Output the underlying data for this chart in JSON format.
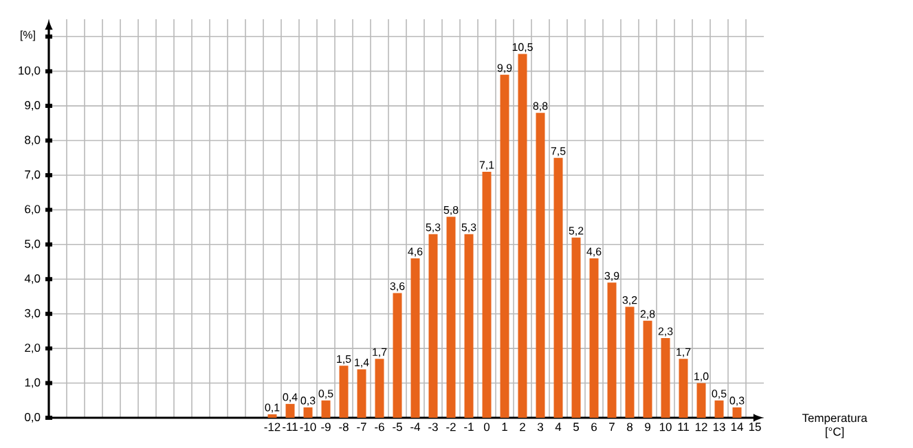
{
  "chart_data": {
    "type": "bar",
    "ylabel": "[%]",
    "xlabel": "Temperatura [°C]",
    "categories": [
      null,
      null,
      null,
      null,
      null,
      null,
      null,
      null,
      null,
      null,
      null,
      null,
      "-12",
      "-11",
      "-10",
      "-9",
      "-8",
      "-7",
      "-6",
      "-5",
      "-4",
      "-3",
      "-2",
      "-1",
      "0",
      "1",
      "2",
      "3",
      "4",
      "5",
      "6",
      "7",
      "8",
      "9",
      "10",
      "11",
      "12",
      "13",
      "14",
      "15"
    ],
    "values": [
      null,
      null,
      null,
      null,
      null,
      null,
      null,
      null,
      null,
      null,
      null,
      null,
      0.1,
      0.4,
      0.3,
      0.5,
      1.5,
      1.4,
      1.7,
      3.6,
      4.6,
      5.3,
      5.8,
      5.3,
      7.1,
      9.9,
      10.5,
      8.8,
      7.5,
      5.2,
      4.6,
      3.9,
      3.2,
      2.8,
      2.3,
      1.7,
      1.0,
      0.5,
      0.3,
      null
    ],
    "value_labels": [
      null,
      null,
      null,
      null,
      null,
      null,
      null,
      null,
      null,
      null,
      null,
      null,
      "0,1",
      "0,4",
      "0,3",
      "0,5",
      "1,5",
      "1,4",
      "1,7",
      "3,6",
      "4,6",
      "5,3",
      "5,8",
      "5,3",
      "7,1",
      "9,9",
      "10,5",
      "8,8",
      "7,5",
      "5,2",
      "4,6",
      "3,9",
      "3,2",
      "2,8",
      "2,3",
      "1,7",
      "1,0",
      "0,5",
      "0,3",
      null
    ],
    "color": "#e8641b",
    "ylim": [
      0,
      11.5
    ],
    "yticks": [
      {
        "value": 0,
        "label": "0,0"
      },
      {
        "value": 1,
        "label": "1,0"
      },
      {
        "value": 2,
        "label": "2,0"
      },
      {
        "value": 3,
        "label": "3,0"
      },
      {
        "value": 4,
        "label": "4,0"
      },
      {
        "value": 5,
        "label": "5,0"
      },
      {
        "value": 6,
        "label": "6,0"
      },
      {
        "value": 7,
        "label": "7,0"
      },
      {
        "value": 8,
        "label": "8,0"
      },
      {
        "value": 9,
        "label": "9,0"
      },
      {
        "value": 10,
        "label": "10,0"
      },
      {
        "value": 11,
        "label": null
      }
    ],
    "grid": true
  }
}
